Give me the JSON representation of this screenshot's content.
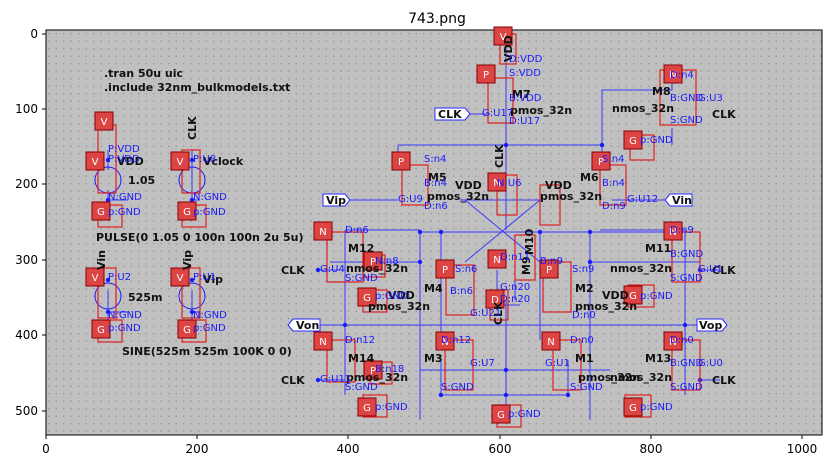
{
  "title": "743.png",
  "axes": {
    "xticks": [
      "0",
      "200",
      "400",
      "600",
      "800",
      "1000"
    ],
    "yticks": [
      "0",
      "100",
      "200",
      "300",
      "400",
      "500"
    ]
  },
  "directives": [
    ".tran 50u uic",
    ".include 32nm_bulkmodels.txt"
  ],
  "sources": {
    "vdd_name": "VDD",
    "vdd_value": "1.05",
    "clk_name": "CLK",
    "clk_value": "Vclock",
    "pulse": "PULSE(0 1.05 0 100n 100n 2u 5u)",
    "vin_name": "Vin",
    "vin_value": "525m",
    "vip_name": "Vip",
    "vip_value": "Vip",
    "sine": "SINE(525m 525m 100K 0 0)"
  },
  "ports": {
    "clk": "CLK",
    "vip": "Vip",
    "vin": "Vin",
    "von": "Von",
    "vop": "Vop"
  },
  "models": {
    "pmos": "pmos_32n",
    "nmos": "nmos_32n"
  },
  "devices": [
    "M1",
    "M2",
    "M3",
    "M4",
    "M5",
    "M6",
    "M7",
    "M8",
    "M9",
    "M10",
    "M11",
    "M12",
    "M13",
    "M14"
  ],
  "labels": {
    "vdd": "VDD",
    "gnd": "GND",
    "clk": "CLK",
    "vip": "Vip",
    "vin": "Vin",
    "dvdd": "D:VDD",
    "svdd": "S:VDD",
    "bvdd": "B:VDD",
    "gu17": "G:U17",
    "du17": "D:U17",
    "bgnd": "B:GND",
    "dn4": "D:n4",
    "gu3": "G:U3",
    "sgnd": "S:GND",
    "pgnd": "p:GND",
    "ngnd": "N:GND",
    "pvdd": "P:VDD",
    "pu2": "P:U2",
    "pu1": "P:U1",
    "pu8": "P:U8",
    "sn4": "S:n4",
    "bn4": "B:n4",
    "dn6": "D:n6",
    "gu9": "G:U9",
    "nu6": "N:U6",
    "dn9": "D:n9",
    "gu12": "G:U12",
    "gu4": "G:U4",
    "gu1": "G:U1",
    "sn6": "S:n6",
    "bn6": "B:n6",
    "dn11": "D:n11",
    "gn20": "G:n20",
    "dn20": "D:n20",
    "gu21": "G:U21",
    "sn9": "S:n9",
    "bn9": "B:n9",
    "dn0": "D:n0",
    "dn12": "D:n12",
    "gu7": "G:U7",
    "gu11": "G:U11",
    "gu0": "G:U0",
    "bn18": "B:n18",
    "nn8": "N:n8",
    "gpgnd": "G:p:GND",
    "b9": "B:n9",
    "n12": "n12",
    "clk2": "CLK"
  }
}
